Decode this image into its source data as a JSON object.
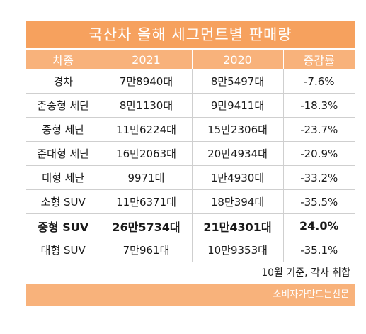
{
  "title": "국산차 올해 세그먼트별 판매량",
  "table": {
    "headers": [
      "차종",
      "2021",
      "2020",
      "증감률"
    ],
    "rows": [
      {
        "segment": "경차",
        "y2021": "7만8940대",
        "y2020": "8만5497대",
        "change": "-7.6%"
      },
      {
        "segment": "준중형 세단",
        "y2021": "8만1130대",
        "y2020": "9만9411대",
        "change": "-18.3%"
      },
      {
        "segment": "중형 세단",
        "y2021": "11만6224대",
        "y2020": "15만2306대",
        "change": "-23.7%"
      },
      {
        "segment": "준대형 세단",
        "y2021": "16만2063대",
        "y2020": "20만4934대",
        "change": "-20.9%"
      },
      {
        "segment": "대형 세단",
        "y2021": "9971대",
        "y2020": "1만4930대",
        "change": "-33.2%"
      },
      {
        "segment": "소형 SUV",
        "y2021": "11만6371대",
        "y2020": "18만394대",
        "change": "-35.5%"
      },
      {
        "segment": "중형 SUV",
        "y2021": "26만5734대",
        "y2020": "21만4301대",
        "change": "24.0%"
      },
      {
        "segment": "대형 SUV",
        "y2021": "7만961대",
        "y2020": "10만9353대",
        "change": "-35.1%"
      }
    ]
  },
  "note": "10월 기준, 각사 취합",
  "footer": "소비자가만드는신문",
  "colors": {
    "title_bg": "#f6a15e",
    "header_bg": "#f8b27b",
    "highlight_row": "중형 SUV"
  }
}
